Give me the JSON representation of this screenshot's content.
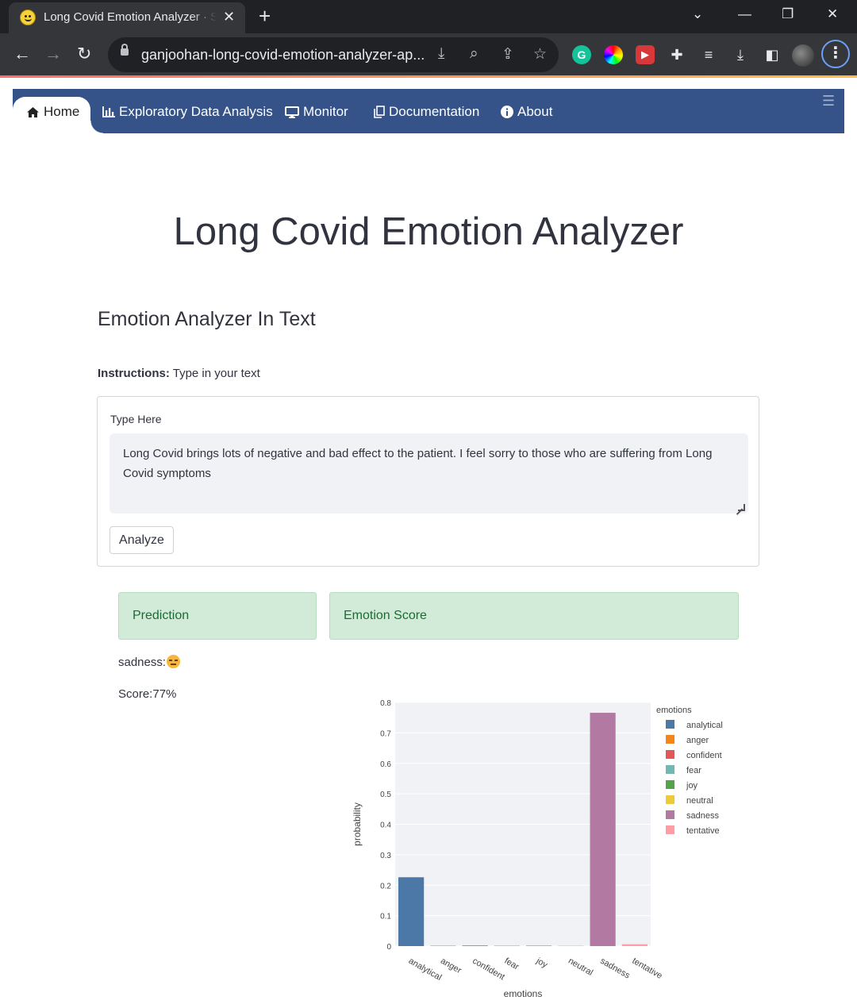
{
  "browser": {
    "tab_title": "Long Covid Emotion Analyzer · Streamlit",
    "url": "ganjoohan-long-covid-emotion-analyzer-ap..."
  },
  "navbar": {
    "items": [
      {
        "label": "Home",
        "icon": "home-icon",
        "active": true
      },
      {
        "label": "Exploratory Data Analysis",
        "icon": "bar-chart-icon"
      },
      {
        "label": "Monitor",
        "icon": "monitor-icon"
      },
      {
        "label": "Documentation",
        "icon": "documents-icon"
      },
      {
        "label": "About",
        "icon": "info-icon"
      }
    ]
  },
  "page": {
    "title": "Long Covid Emotion Analyzer",
    "section_title": "Emotion Analyzer In Text",
    "instructions_label": "Instructions:",
    "instructions_text": " Type in your text",
    "form": {
      "label": "Type Here",
      "value": "Long Covid brings lots of negative and bad effect to the patient. I feel sorry to those who are suffering from Long Covid symptoms",
      "button_label": "Analyze"
    },
    "prediction_header": "Prediction",
    "emotion_score_header": "Emotion Score",
    "prediction_text": "sadness:",
    "score_text": "Score:77%"
  },
  "chart_data": {
    "type": "bar",
    "categories": [
      "analytical",
      "anger",
      "confident",
      "fear",
      "joy",
      "neutral",
      "sadness",
      "tentative"
    ],
    "values": [
      0.226,
      0.001,
      0.002,
      0.001,
      0.001,
      0.001,
      0.766,
      0.006
    ],
    "colors": [
      "#4c78a8",
      "#f58518",
      "#e45756",
      "#72b7b2",
      "#54a24b",
      "#eeca3b",
      "#b279a2",
      "#ff9da6"
    ],
    "xlabel": "emotions",
    "ylabel": "probability",
    "legend_title": "emotions",
    "yticks": [
      0,
      0.1,
      0.2,
      0.3,
      0.4,
      0.5,
      0.6,
      0.7,
      0.8
    ],
    "ylim": [
      0,
      0.8
    ],
    "legend_position": "right"
  }
}
